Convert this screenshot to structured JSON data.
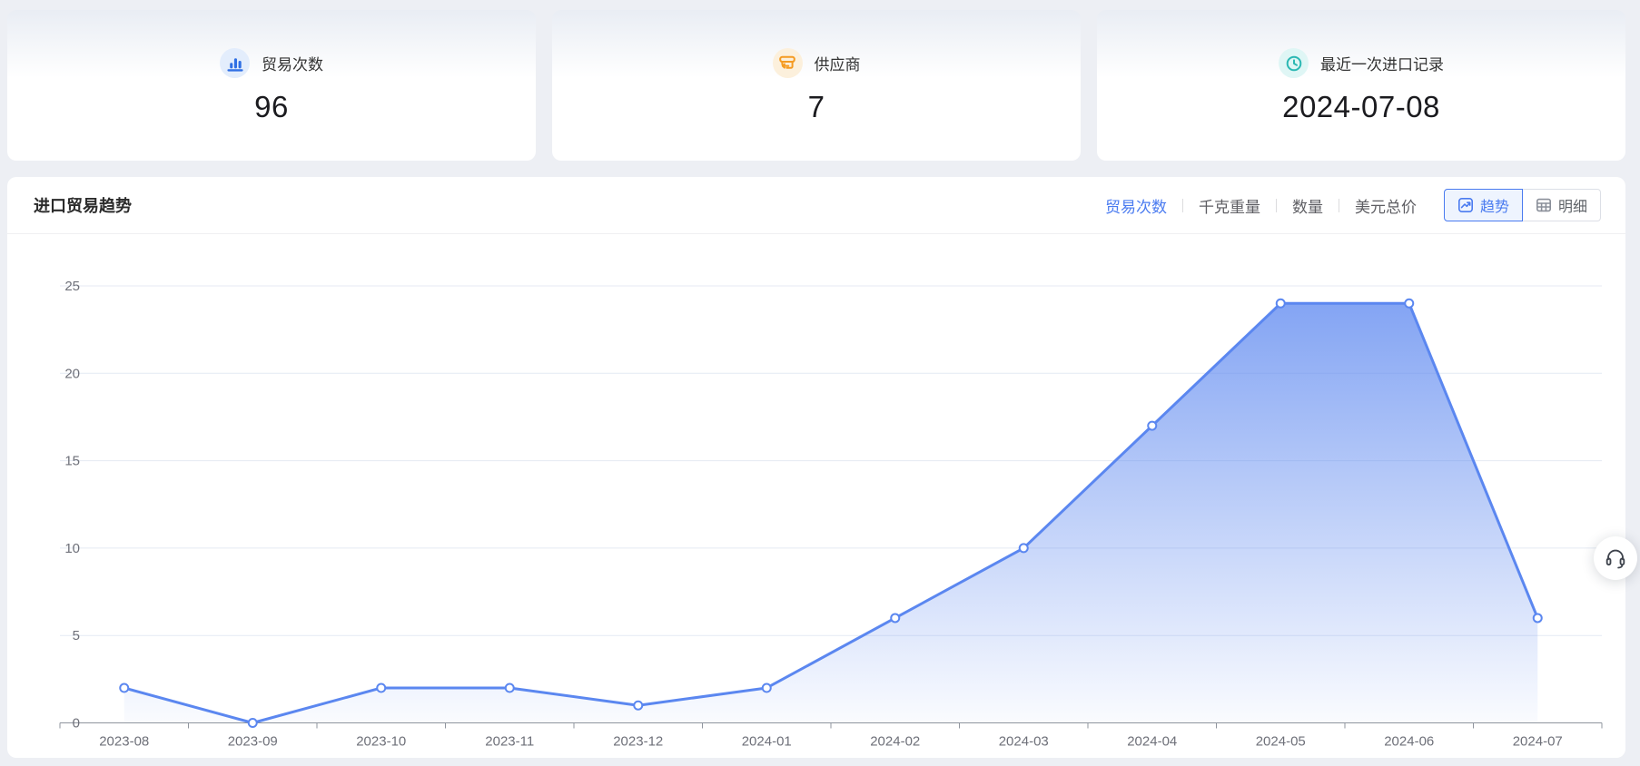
{
  "stat_cards": [
    {
      "label": "贸易次数",
      "value": "96",
      "icon": "bar-chart-icon",
      "accent": "#2F6FE4",
      "accent_bg": "#E3EDFC"
    },
    {
      "label": "供应商",
      "value": "7",
      "icon": "shop-icon",
      "accent": "#F59B22",
      "accent_bg": "#FCF0DC"
    },
    {
      "label": "最近一次进口记录",
      "value": "2024-07-08",
      "icon": "clock-icon",
      "accent": "#2BB8B3",
      "accent_bg": "#DFF6F5"
    }
  ],
  "trend_panel": {
    "title": "进口贸易趋势",
    "metric_tabs": [
      {
        "label": "贸易次数",
        "active": true
      },
      {
        "label": "千克重量",
        "active": false
      },
      {
        "label": "数量",
        "active": false
      },
      {
        "label": "美元总价",
        "active": false
      }
    ],
    "view_buttons": [
      {
        "label": "趋势",
        "icon": "trend-icon",
        "active": true
      },
      {
        "label": "明细",
        "icon": "table-icon",
        "active": false
      }
    ],
    "active_color": "#4A7BF0"
  },
  "floating_button": {
    "icon": "headset-icon"
  },
  "chart_data": {
    "type": "area",
    "title": "进口贸易趋势",
    "categories": [
      "2023-08",
      "2023-09",
      "2023-10",
      "2023-11",
      "2023-12",
      "2024-01",
      "2024-02",
      "2024-03",
      "2024-04",
      "2024-05",
      "2024-06",
      "2024-07"
    ],
    "series": [
      {
        "name": "贸易次数",
        "values": [
          2,
          0,
          2,
          2,
          1,
          2,
          6,
          10,
          17,
          24,
          24,
          6
        ]
      }
    ],
    "xlabel": "",
    "ylabel": "",
    "ylim": [
      0,
      25
    ],
    "y_tick_step": 5,
    "y_ticks": [
      0,
      5,
      10,
      15,
      20,
      25
    ],
    "grid": true,
    "legend": "none",
    "line_color": "#5B87F0",
    "marker_fill": "#FFFFFF",
    "area_top_color": "rgba(97,139,240,0.78)",
    "area_bottom_color": "rgba(97,139,240,0.03)",
    "grid_color": "#E4EAF3",
    "axis_color": "#8F959E",
    "axis_label_color": "#6E7079"
  }
}
